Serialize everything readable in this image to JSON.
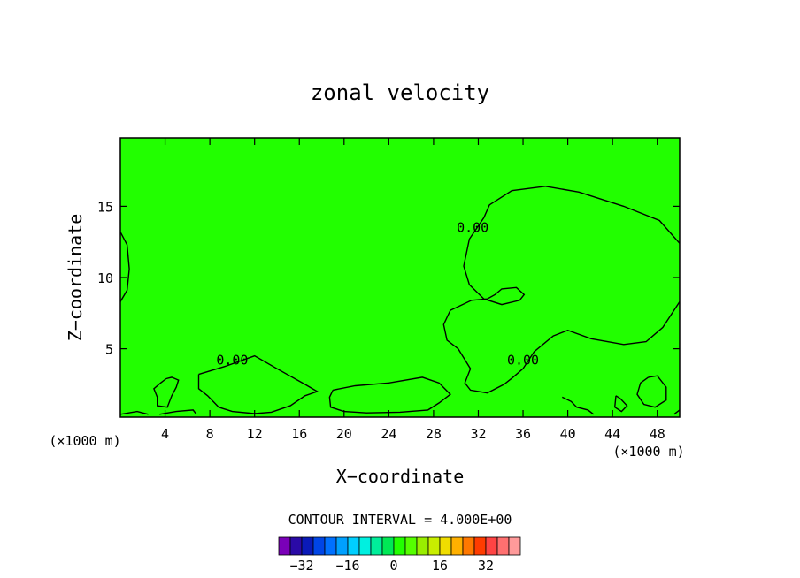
{
  "chart_data": {
    "type": "contour",
    "title": "zonal velocity",
    "xlabel": "X−coordinate",
    "ylabel": "Z−coordinate",
    "x_unit_left": "(×1000 m)",
    "x_unit_right": "(×1000 m)",
    "xlim": [
      0,
      50
    ],
    "ylim": [
      0.2,
      19.8
    ],
    "x_ticks": [
      4,
      8,
      12,
      16,
      20,
      24,
      28,
      32,
      36,
      40,
      44,
      48
    ],
    "y_ticks": [
      5,
      10,
      15
    ],
    "contour_interval_label": "CONTOUR INTERVAL = 4.000E+00",
    "contour_labels": [
      {
        "text": "0.00",
        "x": 31.5,
        "y": 13.2
      },
      {
        "text": "0.00",
        "x": 10.0,
        "y": 3.9
      },
      {
        "text": "0.00",
        "x": 36.0,
        "y": 3.9
      }
    ],
    "zero_contours": [
      [
        [
          38,
          16.4
        ],
        [
          35,
          16.1
        ],
        [
          33,
          15.1
        ],
        [
          32.5,
          14.2
        ],
        [
          31.2,
          12.7
        ],
        [
          30.7,
          10.8
        ],
        [
          31.2,
          9.5
        ],
        [
          32.5,
          8.5
        ],
        [
          34.1,
          8.1
        ],
        [
          35.7,
          8.4
        ],
        [
          36.1,
          8.8
        ],
        [
          35.4,
          9.3
        ],
        [
          34.1,
          9.2
        ],
        [
          33.5,
          8.8
        ],
        [
          32.8,
          8.5
        ],
        [
          31.4,
          8.4
        ],
        [
          29.5,
          7.7
        ],
        [
          28.9,
          6.7
        ],
        [
          29.2,
          5.6
        ],
        [
          30.2,
          5.0
        ],
        [
          31.3,
          3.6
        ],
        [
          30.8,
          2.6
        ],
        [
          31.3,
          2.1
        ],
        [
          32.8,
          1.9
        ],
        [
          34.3,
          2.5
        ],
        [
          35.1,
          3.0
        ],
        [
          36.0,
          3.6
        ],
        [
          37.0,
          4.8
        ],
        [
          38.7,
          5.9
        ],
        [
          40.0,
          6.3
        ],
        [
          42.1,
          5.7
        ],
        [
          45.0,
          5.3
        ],
        [
          47.0,
          5.5
        ],
        [
          48.5,
          6.5
        ],
        [
          50,
          8.3
        ]
      ],
      [
        [
          50,
          12.4
        ],
        [
          48.2,
          14.0
        ],
        [
          45.0,
          15.0
        ],
        [
          41.0,
          16.0
        ],
        [
          38,
          16.4
        ]
      ],
      [
        [
          7.0,
          3.2
        ],
        [
          9.5,
          3.8
        ],
        [
          12.0,
          4.5
        ],
        [
          14.0,
          3.6
        ],
        [
          16.5,
          2.5
        ],
        [
          17.6,
          2.0
        ],
        [
          16.5,
          1.7
        ],
        [
          15.2,
          1.0
        ],
        [
          13.5,
          0.55
        ],
        [
          12.0,
          0.45
        ],
        [
          10.0,
          0.6
        ],
        [
          8.8,
          0.9
        ],
        [
          7.8,
          1.7
        ],
        [
          7.0,
          2.2
        ],
        [
          7.0,
          3.2
        ]
      ],
      [
        [
          19.0,
          2.1
        ],
        [
          21.0,
          2.4
        ],
        [
          24.0,
          2.6
        ],
        [
          27.0,
          3.0
        ],
        [
          28.5,
          2.6
        ],
        [
          29.5,
          1.8
        ],
        [
          28.5,
          1.2
        ],
        [
          27.5,
          0.7
        ],
        [
          25.0,
          0.55
        ],
        [
          22.0,
          0.5
        ],
        [
          20.0,
          0.6
        ],
        [
          18.8,
          0.9
        ],
        [
          18.7,
          1.6
        ],
        [
          19.0,
          2.1
        ]
      ],
      [
        [
          4.1,
          2.9
        ],
        [
          3.6,
          2.6
        ],
        [
          3.0,
          2.2
        ],
        [
          3.3,
          1.6
        ],
        [
          3.3,
          1.0
        ],
        [
          4.2,
          0.9
        ],
        [
          4.6,
          1.7
        ],
        [
          5.0,
          2.3
        ],
        [
          5.2,
          2.8
        ],
        [
          4.6,
          3.0
        ],
        [
          4.1,
          2.9
        ]
      ],
      [
        [
          47.2,
          3.0
        ],
        [
          46.5,
          2.6
        ],
        [
          46.2,
          1.8
        ],
        [
          46.8,
          1.1
        ],
        [
          47.8,
          0.9
        ],
        [
          48.8,
          1.4
        ],
        [
          48.8,
          2.3
        ],
        [
          48.0,
          3.1
        ],
        [
          47.2,
          3.0
        ]
      ],
      [
        [
          44.3,
          1.7
        ],
        [
          44.7,
          1.5
        ],
        [
          45.3,
          1.0
        ],
        [
          44.8,
          0.6
        ],
        [
          44.2,
          0.9
        ],
        [
          44.3,
          1.7
        ]
      ],
      [
        [
          0,
          13.2
        ],
        [
          0.6,
          12.3
        ],
        [
          0.8,
          10.6
        ],
        [
          0.6,
          9.1
        ],
        [
          0,
          8.3
        ]
      ],
      [
        [
          0,
          0.4
        ],
        [
          1.5,
          0.6
        ],
        [
          2.5,
          0.4
        ]
      ],
      [
        [
          3.5,
          0.4
        ],
        [
          5.0,
          0.6
        ],
        [
          6.5,
          0.7
        ],
        [
          6.8,
          0.4
        ]
      ],
      [
        [
          39.5,
          1.6
        ],
        [
          40.3,
          1.3
        ],
        [
          40.8,
          0.9
        ],
        [
          41.8,
          0.7
        ],
        [
          42.3,
          0.4
        ]
      ],
      [
        [
          49.5,
          0.4
        ],
        [
          50,
          0.7
        ]
      ]
    ],
    "fill_color": "#22ff00",
    "colorbar": {
      "colors": [
        "#7a00b8",
        "#2a0aa6",
        "#0a1ab8",
        "#0045e6",
        "#0070ff",
        "#00a0ff",
        "#00cfff",
        "#00f0e0",
        "#00ee9a",
        "#00e855",
        "#22ff00",
        "#55ff00",
        "#99ee00",
        "#c8ee00",
        "#f0dd00",
        "#ffb000",
        "#ff7800",
        "#ff3c00",
        "#ff4444",
        "#ff7070",
        "#ff9a9a"
      ],
      "tick_labels": [
        "−32",
        "−16",
        "0",
        "16",
        "32"
      ],
      "tick_values": [
        -32,
        -16,
        0,
        16,
        32
      ],
      "vmin": -40,
      "vmax": 44
    }
  }
}
